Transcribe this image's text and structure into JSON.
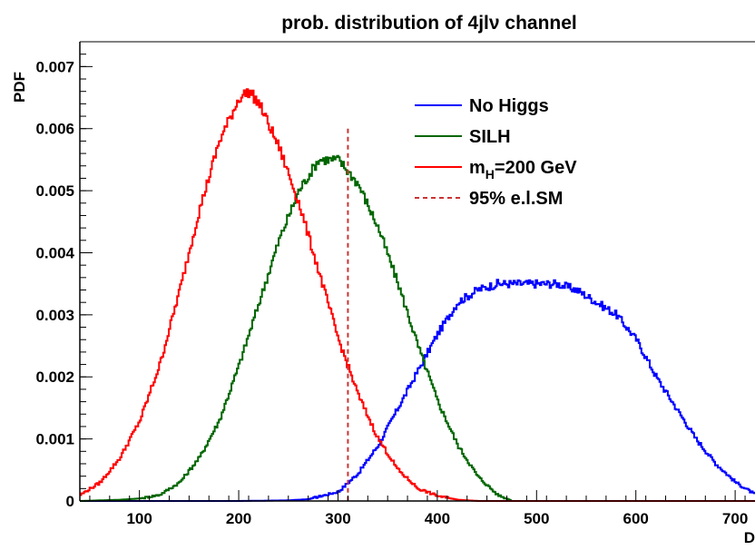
{
  "chart_data": {
    "type": "line",
    "title": "prob. distribution of 4jlν channel",
    "xlabel": "D",
    "ylabel": "PDF",
    "xlim": [
      40,
      720
    ],
    "ylim": [
      0,
      0.0074
    ],
    "xticks": [
      {
        "v": 100,
        "label": "100"
      },
      {
        "v": 200,
        "label": "200"
      },
      {
        "v": 300,
        "label": "300"
      },
      {
        "v": 400,
        "label": "400"
      },
      {
        "v": 500,
        "label": "500"
      },
      {
        "v": 600,
        "label": "600"
      },
      {
        "v": 700,
        "label": "700"
      }
    ],
    "yticks": [
      {
        "v": 0,
        "label": "0"
      },
      {
        "v": 0.001,
        "label": "0.001"
      },
      {
        "v": 0.002,
        "label": "0.002"
      },
      {
        "v": 0.003,
        "label": "0.003"
      },
      {
        "v": 0.004,
        "label": "0.004"
      },
      {
        "v": 0.005,
        "label": "0.005"
      },
      {
        "v": 0.006,
        "label": "0.006"
      },
      {
        "v": 0.007,
        "label": "0.007"
      }
    ],
    "legend_position": "top-right",
    "grid": false,
    "series": [
      {
        "name": "No Higgs",
        "color": "#0000ff",
        "x": [
          40,
          100,
          150,
          200,
          250,
          270,
          300,
          320,
          340,
          360,
          380,
          400,
          420,
          440,
          460,
          480,
          500,
          520,
          540,
          560,
          580,
          600,
          620,
          640,
          660,
          680,
          700,
          720
        ],
        "y": [
          0,
          0,
          0,
          0,
          1e-05,
          3e-05,
          0.00015,
          0.00045,
          0.0009,
          0.0015,
          0.0021,
          0.0027,
          0.0032,
          0.0034,
          0.0035,
          0.0035,
          0.0035,
          0.0035,
          0.0034,
          0.0032,
          0.003,
          0.0026,
          0.002,
          0.0015,
          0.001,
          0.0006,
          0.0003,
          0.0001
        ]
      },
      {
        "name": "SILH",
        "color": "#006600",
        "x": [
          40,
          80,
          100,
          120,
          140,
          160,
          180,
          200,
          220,
          240,
          260,
          280,
          300,
          320,
          340,
          360,
          380,
          400,
          420,
          440,
          460,
          475
        ],
        "y": [
          0,
          2e-05,
          4e-05,
          0.0001,
          0.0003,
          0.0007,
          0.0013,
          0.0022,
          0.0032,
          0.0042,
          0.005,
          0.0055,
          0.0055,
          0.0051,
          0.0044,
          0.0035,
          0.0025,
          0.0016,
          0.0009,
          0.0004,
          0.0001,
          0
        ]
      },
      {
        "name": "m_H=200 GeV",
        "label_main": "m",
        "label_sub": "H",
        "label_rest": "=200 GeV",
        "color": "#ff0000",
        "x": [
          40,
          60,
          80,
          100,
          120,
          140,
          160,
          180,
          200,
          210,
          220,
          240,
          260,
          280,
          300,
          320,
          340,
          360,
          380,
          400,
          420,
          440,
          460,
          480,
          500,
          720
        ],
        "y": [
          0.0001,
          0.0003,
          0.0007,
          0.0013,
          0.0022,
          0.0034,
          0.0047,
          0.0058,
          0.0065,
          0.0066,
          0.0064,
          0.0057,
          0.0048,
          0.0037,
          0.0026,
          0.0017,
          0.001,
          0.0005,
          0.0002,
          8e-05,
          2e-05,
          0,
          0,
          0,
          0,
          0
        ]
      }
    ],
    "vline": {
      "name": "95% e.l.SM",
      "x": 310,
      "y_top": 0.006,
      "color": "#cc3333"
    }
  }
}
